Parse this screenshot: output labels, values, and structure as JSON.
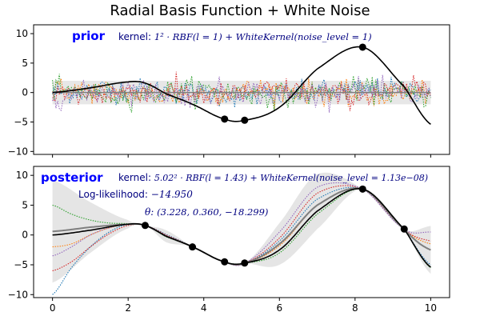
{
  "figure": {
    "title": "Radial Basis Function + White Noise"
  },
  "chart_data": [
    {
      "type": "line",
      "panel": "prior",
      "label": "prior",
      "kernel_prefix": "kernel: ",
      "kernel_text": "1² · RBF(l = 1) + WhiteKernel(noise_level = 1)",
      "xlim": [
        -0.5,
        10.5
      ],
      "ylim": [
        -10.5,
        11.5
      ],
      "xticks": [
        0,
        2,
        4,
        6,
        8,
        10
      ],
      "yticks": [
        -10,
        -5,
        0,
        5,
        10
      ],
      "show_xtick_labels": false,
      "band": {
        "upper": 2.0,
        "lower": -2.0,
        "color": "#d3d3d3"
      },
      "observed": {
        "x": [
          4.55,
          5.08,
          8.2
        ],
        "y": [
          -4.5,
          -4.7,
          7.7
        ]
      },
      "true_function": {
        "name": "true",
        "color": "#000000"
      },
      "sample_colors": [
        "#1f77b4",
        "#ff7f0e",
        "#2ca02c",
        "#d62728",
        "#9467bd"
      ],
      "mean_color": "#7f7f7f"
    },
    {
      "type": "line",
      "panel": "posterior",
      "label": "posterior",
      "kernel_prefix": "kernel: ",
      "kernel_text": "5.02² · RBF(l = 1.43) + WhiteKernel(noise_level = 1.13e−08)",
      "loglik_prefix": "Log-likelihood: ",
      "loglik_value": "−14.950",
      "theta_prefix": "θ: ",
      "theta_value": "(3.228, 0.360, −18.299)",
      "xlim": [
        -0.5,
        10.5
      ],
      "ylim": [
        -10.5,
        11.5
      ],
      "xticks": [
        0,
        2,
        4,
        6,
        8,
        10
      ],
      "yticks": [
        -10,
        -5,
        0,
        5,
        10
      ],
      "show_xtick_labels": true,
      "observed": {
        "x": [
          2.45,
          3.7,
          4.55,
          5.08,
          8.2,
          9.3
        ],
        "y": [
          1.6,
          -2.0,
          -4.5,
          -4.7,
          7.7,
          1.0
        ]
      },
      "true_function": {
        "name": "true",
        "color": "#000000"
      },
      "mean_curve": {
        "x": [
          0,
          1,
          2,
          2.45,
          3,
          3.7,
          4.55,
          5.08,
          6,
          7,
          8.2,
          9.3,
          10
        ],
        "y": [
          0.6,
          1.3,
          1.8,
          1.6,
          -0.2,
          -2.0,
          -4.5,
          -4.7,
          -1.5,
          5.0,
          7.7,
          1.0,
          -2.5
        ]
      },
      "band": {
        "x": [
          0,
          1,
          2,
          2.45,
          3,
          3.7,
          4.55,
          5.08,
          6,
          7,
          8.2,
          9.3,
          10
        ],
        "upper": [
          9.2,
          5.5,
          2.5,
          1.6,
          0.8,
          -2.0,
          -4.5,
          -4.7,
          2.0,
          10.2,
          7.7,
          1.0,
          1.5
        ],
        "lower": [
          -8.0,
          -3.0,
          1.1,
          1.6,
          -1.2,
          -2.0,
          -4.5,
          -4.7,
          -5.0,
          1.0,
          7.7,
          1.0,
          -6.5
        ],
        "color": "#d3d3d3"
      },
      "samples": [
        {
          "color": "#1f77b4",
          "x": [
            0,
            0.5,
            1,
            1.5,
            2,
            2.45,
            3,
            3.7,
            4.55,
            5.08,
            6,
            7,
            8.2,
            9.3,
            10
          ],
          "y": [
            -10,
            -5.5,
            -2,
            0.5,
            1.8,
            1.6,
            0.1,
            -2.0,
            -4.5,
            -4.7,
            -1.0,
            6.0,
            7.7,
            1.0,
            -5.0
          ]
        },
        {
          "color": "#ff7f0e",
          "x": [
            0,
            0.5,
            1,
            1.5,
            2,
            2.45,
            3,
            3.7,
            4.55,
            5.08,
            6,
            7,
            8.2,
            9.3,
            10
          ],
          "y": [
            -2.0,
            -1.5,
            0.0,
            1.2,
            1.8,
            1.6,
            -0.2,
            -2.0,
            -4.5,
            -4.7,
            -1.8,
            5.0,
            7.7,
            1.0,
            -1.5
          ]
        },
        {
          "color": "#2ca02c",
          "x": [
            0,
            0.5,
            1,
            1.5,
            2,
            2.45,
            3,
            3.7,
            4.55,
            5.08,
            6,
            7,
            8.2,
            9.3,
            10
          ],
          "y": [
            5.0,
            3.5,
            2.5,
            2.0,
            1.9,
            1.6,
            -0.3,
            -2.0,
            -4.5,
            -4.7,
            -3.0,
            3.5,
            7.7,
            1.0,
            -5.5
          ]
        },
        {
          "color": "#d62728",
          "x": [
            0,
            0.5,
            1,
            1.5,
            2,
            2.45,
            3,
            3.7,
            4.55,
            5.08,
            6,
            7,
            8.2,
            9.3,
            10
          ],
          "y": [
            -6.0,
            -4.5,
            -2.0,
            0.2,
            1.6,
            1.6,
            0.0,
            -2.0,
            -4.5,
            -4.7,
            -0.5,
            7.0,
            7.7,
            1.0,
            -1.0
          ]
        },
        {
          "color": "#9467bd",
          "x": [
            0,
            0.5,
            1,
            1.5,
            2,
            2.45,
            3,
            3.7,
            4.55,
            5.08,
            6,
            7,
            8.2,
            9.3,
            10
          ],
          "y": [
            -3.5,
            -2.0,
            0.0,
            1.2,
            1.8,
            1.6,
            -0.1,
            -2.0,
            -4.5,
            -4.7,
            0.5,
            8.0,
            7.7,
            1.0,
            0.5
          ]
        }
      ],
      "mean_color": "#7f7f7f"
    }
  ]
}
